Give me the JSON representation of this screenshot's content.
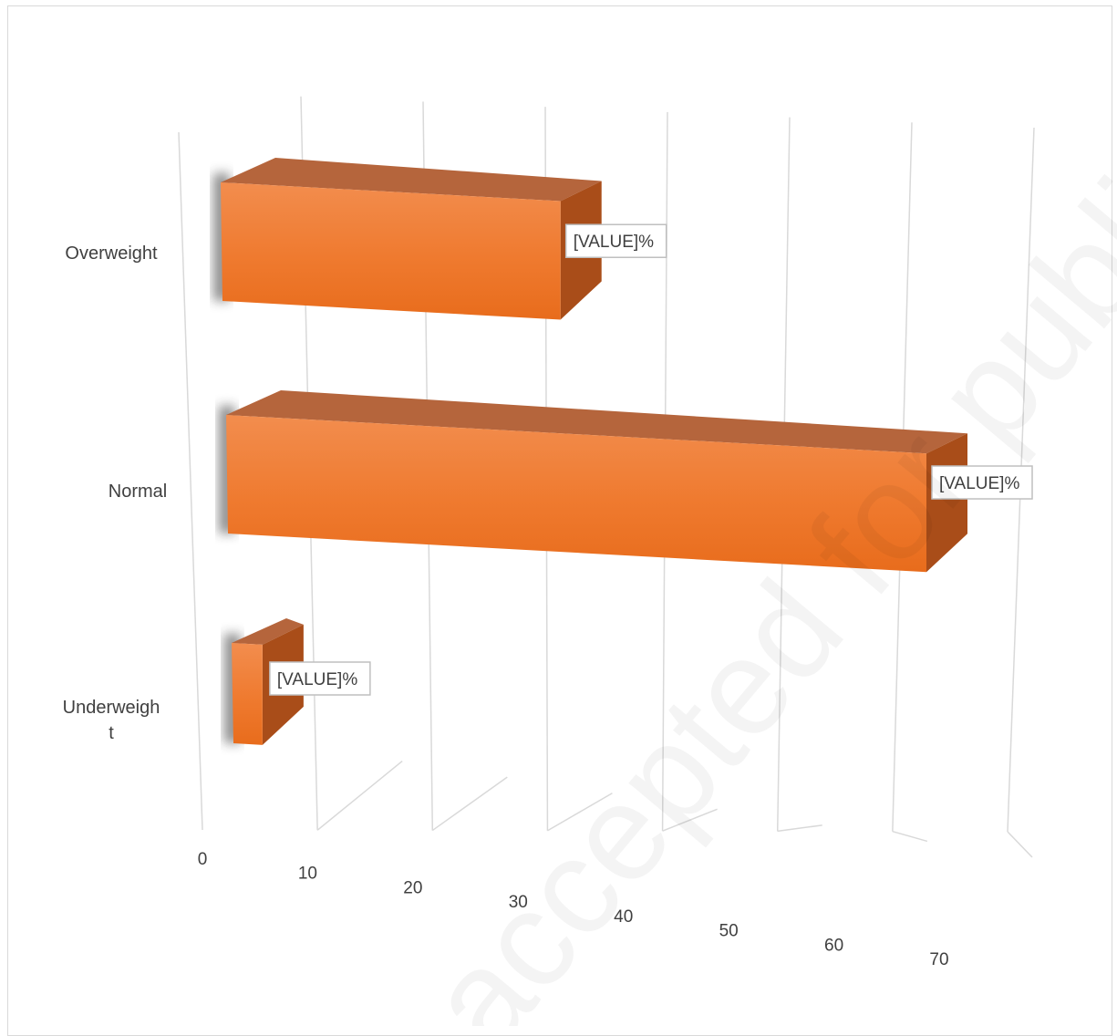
{
  "chart_data": {
    "type": "bar",
    "orientation": "horizontal",
    "style": "3d",
    "categories": [
      "Overweight",
      "Normal",
      "Underweigh\nt"
    ],
    "values": [
      33,
      68,
      3
    ],
    "data_label_text": "[VALUE]%",
    "xlim": [
      0,
      70
    ],
    "xticks": [
      "0",
      "10",
      "20",
      "30",
      "40",
      "50",
      "60",
      "70"
    ],
    "grid": true,
    "legend": "none",
    "colors": {
      "bar_front": "#ef7a2f",
      "bar_top": "#b5653c",
      "bar_side": "#a94d19",
      "grid": "#d9d9d9",
      "text": "#404040"
    }
  },
  "watermark": "accepted for publica"
}
